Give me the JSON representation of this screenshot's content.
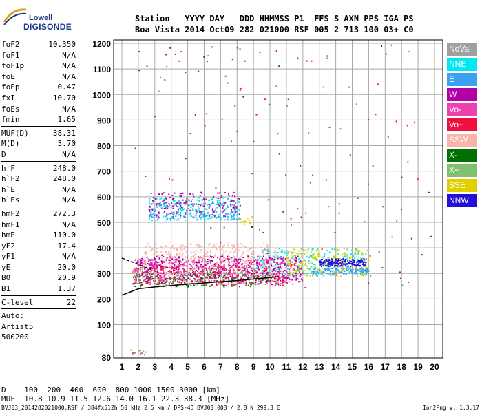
{
  "logo": {
    "line1": "Lowell",
    "line2": "DIGISONDE"
  },
  "header": {
    "row1": "Station   YYYY DAY   DDD HHMMSS P1  FFS S AXN PPS IGA PS",
    "row2": "Boa Vista 2014 Oct09 282 021000 RSF 005 2 713 100 03+ C0"
  },
  "params": {
    "group1": [
      {
        "name": "foF2",
        "value": "10.350"
      },
      {
        "name": "foF1",
        "value": "N/A"
      },
      {
        "name": "foF1p",
        "value": "N/A"
      },
      {
        "name": "foE",
        "value": "N/A"
      },
      {
        "name": "foEp",
        "value": "0.47"
      },
      {
        "name": "fxI",
        "value": "10.70"
      },
      {
        "name": "foEs",
        "value": "N/A"
      },
      {
        "name": "fmin",
        "value": "1.65"
      }
    ],
    "group2": [
      {
        "name": "MUF(D)",
        "value": "38.31"
      },
      {
        "name": "M(D)",
        "value": "3.70"
      },
      {
        "name": "D",
        "value": "N/A"
      }
    ],
    "group3": [
      {
        "name": "h`F",
        "value": "248.0"
      },
      {
        "name": "h`F2",
        "value": "248.0"
      },
      {
        "name": "h`E",
        "value": "N/A"
      },
      {
        "name": "h`Es",
        "value": "N/A"
      }
    ],
    "group4": [
      {
        "name": "hmF2",
        "value": "272.3"
      },
      {
        "name": "hmF1",
        "value": "N/A"
      },
      {
        "name": "hmE",
        "value": "110.0"
      },
      {
        "name": "yF2",
        "value": "17.4"
      },
      {
        "name": "yF1",
        "value": "N/A"
      },
      {
        "name": "yE",
        "value": "20.0"
      },
      {
        "name": "B0",
        "value": "20.9"
      },
      {
        "name": "B1",
        "value": "1.37"
      }
    ],
    "group5": [
      {
        "name": "C-level",
        "value": "22"
      }
    ],
    "notes": [
      "Auto:",
      "Artist5",
      "500200"
    ]
  },
  "legend": [
    {
      "label": "NoVal",
      "color": "#a0a0a0"
    },
    {
      "label": "NNE",
      "color": "#00e8f0"
    },
    {
      "label": "E",
      "color": "#3aa0f0"
    },
    {
      "label": "W",
      "color": "#b000a8"
    },
    {
      "label": "Vo-",
      "color": "#f040b0"
    },
    {
      "label": "Vo+",
      "color": "#f01040"
    },
    {
      "label": "SSW",
      "color": "#f8b4a8"
    },
    {
      "label": "X-",
      "color": "#007000"
    },
    {
      "label": "X+",
      "color": "#80c070"
    },
    {
      "label": "SSE",
      "color": "#e0d000"
    },
    {
      "label": "NNW",
      "color": "#2010d8"
    }
  ],
  "bottom": {
    "row1": "D    100  200  400  600  800 1000 1500 3000 [km]",
    "row2": "MUF  10.8 10.9 11.5 12.6 14.0 16.1 22.3 38.3 [MHz]"
  },
  "footer": {
    "left": "BVJ03_2014282021000.RSF / 384fx512h 50 kHz 2.5 km / DPS-4D BVJ03 003 / 2.8 N 299.3 E",
    "right": "Ion2Png v. 1.3.17"
  },
  "chart_data": {
    "type": "scatter",
    "title": "",
    "xlabel": "",
    "ylabel": "",
    "xlim": [
      1,
      20
    ],
    "ylim": [
      80,
      1200
    ],
    "x_ticks": [
      1,
      2,
      3,
      4,
      5,
      6,
      7,
      8,
      9,
      10,
      11,
      12,
      13,
      14,
      15,
      16,
      17,
      18,
      19,
      20
    ],
    "y_ticks": [
      80,
      100,
      200,
      300,
      400,
      500,
      600,
      700,
      800,
      900,
      1000,
      1100,
      1200
    ],
    "x_tick_labels": [
      "1",
      "2",
      "3",
      "4",
      "5",
      "6",
      "7",
      "8",
      "9",
      "10",
      "11",
      "12",
      "13",
      "14",
      "15",
      "16",
      "17",
      "18",
      "19",
      "20"
    ],
    "y_tick_labels": [
      "80",
      "100",
      "200",
      "300",
      "400",
      "500",
      "600",
      "700",
      "800",
      "900",
      "1000",
      "1100",
      "1200"
    ],
    "grid": true,
    "clusters": [
      {
        "color": "#f8b4a8",
        "x": [
          2.2,
          10.5
        ],
        "y": [
          320,
          420
        ],
        "count": 420
      },
      {
        "color": "#f040b0",
        "x": [
          1.6,
          11.5
        ],
        "y": [
          260,
          360
        ],
        "count": 520
      },
      {
        "color": "#b000a8",
        "x": [
          1.8,
          12.0
        ],
        "y": [
          270,
          370
        ],
        "count": 420
      },
      {
        "color": "#f01040",
        "x": [
          1.6,
          11.0
        ],
        "y": [
          255,
          330
        ],
        "count": 260
      },
      {
        "color": "#00e8f0",
        "x": [
          9.0,
          15.8
        ],
        "y": [
          290,
          400
        ],
        "count": 220
      },
      {
        "color": "#e0d000",
        "x": [
          11.0,
          16.0
        ],
        "y": [
          290,
          400
        ],
        "count": 220
      },
      {
        "color": "#2010d8",
        "x": [
          13.0,
          15.8
        ],
        "y": [
          330,
          360
        ],
        "count": 160
      },
      {
        "color": "#3aa0f0",
        "x": [
          12.5,
          16.0
        ],
        "y": [
          300,
          325
        ],
        "count": 120
      },
      {
        "color": "#007000",
        "x": [
          1.6,
          10.0
        ],
        "y": [
          250,
          300
        ],
        "count": 140
      },
      {
        "color": "#80c070",
        "x": [
          1.6,
          11.0
        ],
        "y": [
          255,
          320
        ],
        "count": 90
      },
      {
        "color": "#00e8f0",
        "x": [
          2.6,
          8.2
        ],
        "y": [
          510,
          600
        ],
        "count": 180
      },
      {
        "color": "#b000a8",
        "x": [
          2.6,
          8.2
        ],
        "y": [
          520,
          620
        ],
        "count": 160
      },
      {
        "color": "#3aa0f0",
        "x": [
          2.6,
          8.0
        ],
        "y": [
          510,
          580
        ],
        "count": 110
      },
      {
        "color": "#e0d000",
        "x": [
          8.0,
          9.0
        ],
        "y": [
          495,
          525
        ],
        "count": 12
      },
      {
        "color": "#80c070",
        "x": [
          1.5,
          2.5
        ],
        "y": [
          82,
          85
        ],
        "count": 10
      },
      {
        "color": "#f040b0",
        "x": [
          1.5,
          2.4
        ],
        "y": [
          82,
          84
        ],
        "count": 8
      },
      {
        "color": "#f01040",
        "x": [
          1.5,
          20.0
        ],
        "y": [
          240,
          1200
        ],
        "count": 60
      },
      {
        "color": "#b000a8",
        "x": [
          1.5,
          20.0
        ],
        "y": [
          240,
          1200
        ],
        "count": 40
      },
      {
        "color": "#007000",
        "x": [
          1.5,
          20.0
        ],
        "y": [
          240,
          1200
        ],
        "count": 25
      },
      {
        "color": "#3aa0f0",
        "x": [
          1.5,
          20.0
        ],
        "y": [
          240,
          1200
        ],
        "count": 20
      }
    ],
    "curves": [
      {
        "name": "",
        "style": "solid",
        "x": [
          1,
          2,
          3,
          4,
          5,
          6,
          7,
          8,
          9,
          10,
          10.5
        ],
        "y": [
          215,
          240,
          247,
          253,
          258,
          263,
          268,
          272,
          278,
          284,
          288
        ]
      },
      {
        "name": "",
        "style": "dashed",
        "x": [
          1,
          1.5,
          2,
          2.5,
          3
        ],
        "y": [
          360,
          348,
          335,
          322,
          310
        ]
      }
    ]
  }
}
